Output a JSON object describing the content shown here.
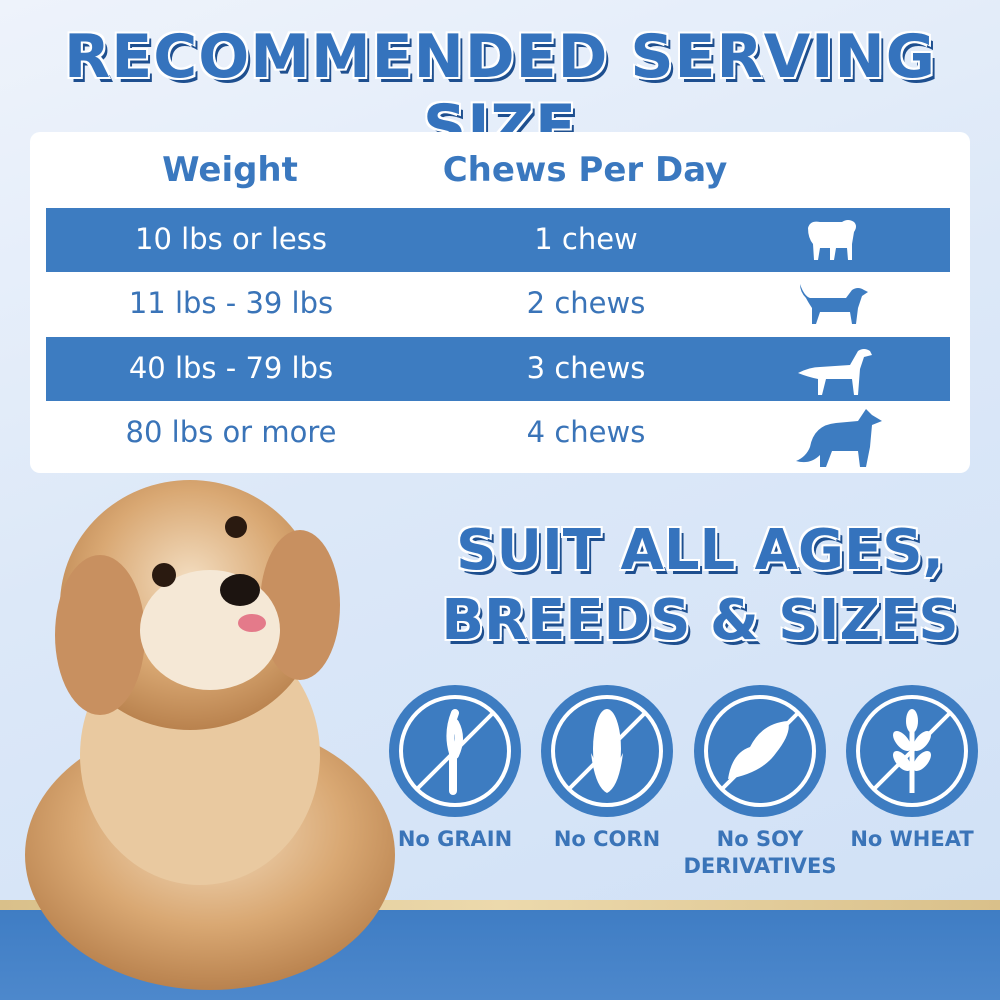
{
  "title": "RECOMMENDED SERVING SIZE",
  "table": {
    "headers": [
      "Weight",
      "Chews Per Day"
    ],
    "rows": [
      {
        "weight": "10 lbs or less",
        "chews": "1 chew",
        "icon": "small-dog-icon"
      },
      {
        "weight": "11 lbs - 39 lbs",
        "chews": "2 chews",
        "icon": "medium-dog-icon"
      },
      {
        "weight": "40 lbs - 79 lbs",
        "chews": "3 chews",
        "icon": "large-dog-icon"
      },
      {
        "weight": "80 lbs or more",
        "chews": "4 chews",
        "icon": "xlarge-dog-icon"
      }
    ]
  },
  "suit": {
    "line1": "SUIT ALL AGES,",
    "line2": "BREEDS & SIZES"
  },
  "badges": [
    {
      "label": "No GRAIN",
      "icon": "no-grain-icon"
    },
    {
      "label": "No CORN",
      "icon": "no-corn-icon"
    },
    {
      "label": "No SOY",
      "label2": "DERIVATIVES",
      "icon": "no-soy-icon"
    },
    {
      "label": "No WHEAT",
      "icon": "no-wheat-icon"
    }
  ],
  "colors": {
    "primary": "#3d7cc1",
    "gold": "#e3cc99"
  }
}
